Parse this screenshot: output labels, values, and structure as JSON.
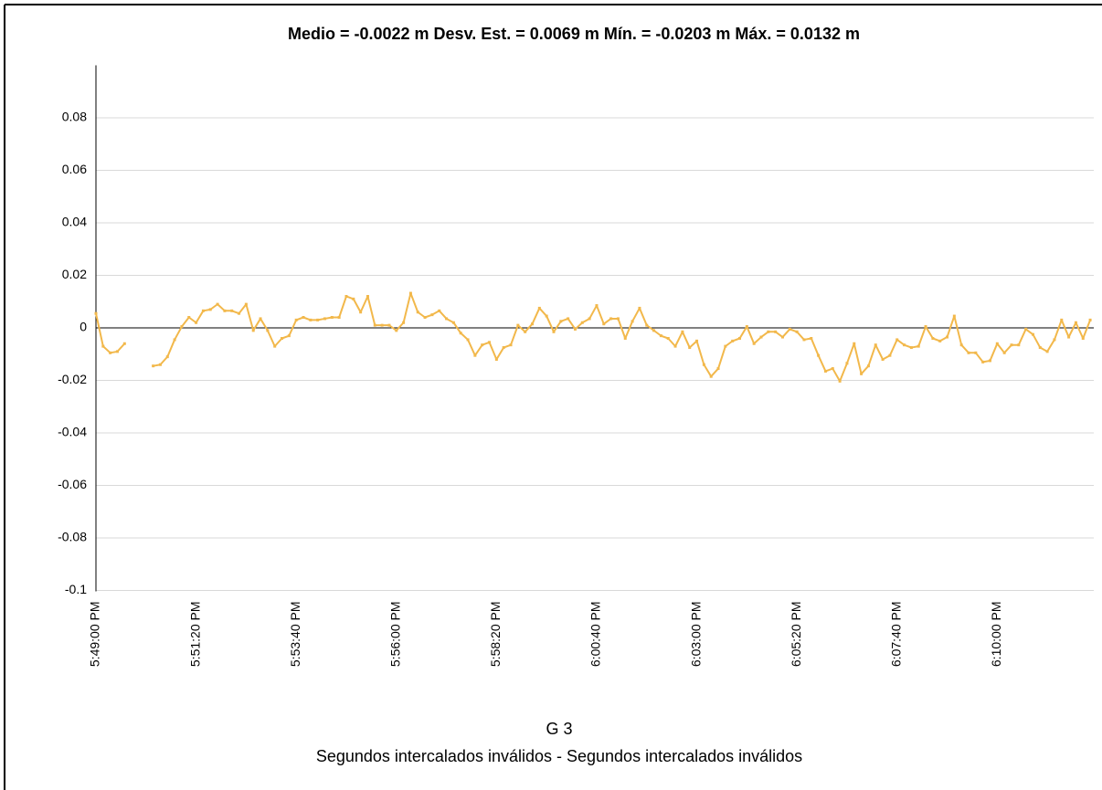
{
  "chart_data": {
    "type": "line",
    "title": "Medio = -0.0022 m Desv. Est. = 0.0069 m Mín. = -0.0203 m Máx. = 0.0132 m",
    "xlabel": "G 3",
    "caption": "Segundos intercalados inválidos - Segundos intercalados inválidos",
    "color": "#f2b84b",
    "grid": true,
    "x": [
      "5:49:00 PM",
      "5:49:10 PM",
      "5:49:20 PM",
      "5:49:30 PM",
      "5:49:40 PM",
      "5:49:50 PM",
      "5:50:00 PM",
      "5:50:10 PM",
      "5:50:20 PM",
      "5:50:30 PM",
      "5:50:40 PM",
      "5:50:50 PM",
      "5:51:00 PM",
      "5:51:10 PM",
      "5:51:20 PM",
      "5:51:30 PM",
      "5:51:40 PM",
      "5:51:50 PM",
      "5:52:00 PM",
      "5:52:10 PM",
      "5:52:20 PM",
      "5:52:30 PM",
      "5:52:40 PM",
      "5:52:50 PM",
      "5:53:00 PM",
      "5:53:10 PM",
      "5:53:20 PM",
      "5:53:30 PM",
      "5:53:40 PM",
      "5:53:50 PM",
      "5:54:00 PM",
      "5:54:10 PM",
      "5:54:20 PM",
      "5:54:30 PM",
      "5:54:40 PM",
      "5:54:50 PM",
      "5:55:00 PM",
      "5:55:10 PM",
      "5:55:20 PM",
      "5:55:30 PM",
      "5:55:40 PM",
      "5:55:50 PM",
      "5:56:00 PM",
      "5:56:10 PM",
      "5:56:20 PM",
      "5:56:30 PM",
      "5:56:40 PM",
      "5:56:50 PM",
      "5:57:00 PM",
      "5:57:10 PM",
      "5:57:20 PM",
      "5:57:30 PM",
      "5:57:40 PM",
      "5:57:50 PM",
      "5:58:00 PM",
      "5:58:10 PM",
      "5:58:20 PM",
      "5:58:30 PM",
      "5:58:40 PM",
      "5:58:50 PM",
      "5:59:00 PM",
      "5:59:10 PM",
      "5:59:20 PM",
      "5:59:30 PM",
      "5:59:40 PM",
      "5:59:50 PM",
      "6:00:00 PM",
      "6:00:10 PM",
      "6:00:20 PM",
      "6:00:30 PM",
      "6:00:40 PM",
      "6:00:50 PM",
      "6:01:00 PM",
      "6:01:10 PM",
      "6:01:20 PM",
      "6:01:30 PM",
      "6:01:40 PM",
      "6:01:50 PM",
      "6:02:00 PM",
      "6:02:10 PM",
      "6:02:20 PM",
      "6:02:30 PM",
      "6:02:40 PM",
      "6:02:50 PM",
      "6:03:00 PM",
      "6:03:10 PM",
      "6:03:20 PM",
      "6:03:30 PM",
      "6:03:40 PM",
      "6:03:50 PM",
      "6:04:00 PM",
      "6:04:10 PM",
      "6:04:20 PM",
      "6:04:30 PM",
      "6:04:40 PM",
      "6:04:50 PM",
      "6:05:00 PM",
      "6:05:10 PM",
      "6:05:20 PM",
      "6:05:30 PM",
      "6:05:40 PM",
      "6:05:50 PM",
      "6:06:00 PM",
      "6:06:10 PM",
      "6:06:20 PM",
      "6:06:30 PM",
      "6:06:40 PM",
      "6:06:50 PM",
      "6:07:00 PM",
      "6:07:10 PM",
      "6:07:20 PM",
      "6:07:30 PM",
      "6:07:40 PM",
      "6:07:50 PM",
      "6:08:00 PM",
      "6:08:10 PM",
      "6:08:20 PM",
      "6:08:30 PM",
      "6:08:40 PM",
      "6:08:50 PM",
      "6:09:00 PM",
      "6:09:10 PM",
      "6:09:20 PM",
      "6:09:30 PM",
      "6:09:40 PM",
      "6:09:50 PM",
      "6:10:00 PM",
      "6:10:10 PM",
      "6:10:20 PM",
      "6:10:30 PM",
      "6:10:40 PM",
      "6:10:50 PM",
      "6:11:00 PM",
      "6:11:10 PM",
      "6:11:20 PM",
      "6:11:30 PM",
      "6:11:40 PM",
      "6:11:50 PM",
      "6:12:00 PM",
      "6:12:10 PM"
    ],
    "values": [
      0.0055,
      -0.007,
      -0.0095,
      -0.009,
      -0.006,
      null,
      null,
      null,
      -0.0145,
      -0.014,
      -0.011,
      -0.0045,
      0.0005,
      0.004,
      0.002,
      0.0065,
      0.007,
      0.009,
      0.0065,
      0.0065,
      0.0055,
      0.009,
      -0.001,
      0.0035,
      -0.001,
      -0.007,
      -0.004,
      -0.003,
      0.003,
      0.004,
      0.003,
      0.003,
      0.0035,
      0.004,
      0.004,
      0.012,
      0.011,
      0.006,
      0.012,
      0.001,
      0.001,
      0.001,
      -0.001,
      0.002,
      0.0132,
      0.006,
      0.004,
      0.005,
      0.0065,
      0.0035,
      0.002,
      -0.002,
      -0.0045,
      -0.0105,
      -0.0065,
      -0.0055,
      -0.012,
      -0.0075,
      -0.0065,
      0.001,
      -0.0015,
      0.0015,
      0.0075,
      0.0045,
      -0.0015,
      0.0025,
      0.0035,
      -0.0005,
      0.002,
      0.0035,
      0.0085,
      0.0015,
      0.0035,
      0.0035,
      -0.004,
      0.0025,
      0.0075,
      0.001,
      -0.001,
      -0.003,
      -0.004,
      -0.007,
      -0.0015,
      -0.0075,
      -0.005,
      -0.014,
      -0.0185,
      -0.0155,
      -0.007,
      -0.005,
      -0.004,
      0.0005,
      -0.006,
      -0.0035,
      -0.0015,
      -0.0015,
      -0.0035,
      -0.0005,
      -0.0015,
      -0.0045,
      -0.004,
      -0.0105,
      -0.0165,
      -0.0155,
      -0.0203,
      -0.0135,
      -0.006,
      -0.0175,
      -0.0145,
      -0.0065,
      -0.012,
      -0.0105,
      -0.0045,
      -0.0065,
      -0.0075,
      -0.007,
      0.0005,
      -0.004,
      -0.005,
      -0.0035,
      0.0045,
      -0.0065,
      -0.0095,
      -0.0095,
      -0.013,
      -0.0125,
      -0.006,
      -0.0095,
      -0.0065,
      -0.0065,
      -0.0005,
      -0.0025,
      -0.0075,
      -0.009,
      -0.0045,
      0.003,
      -0.0035,
      0.002,
      -0.004,
      0.003
    ],
    "xlim": [
      "5:49:00 PM",
      "6:12:15 PM"
    ],
    "xticks": [
      "5:49:00 PM",
      "5:51:20 PM",
      "5:53:40 PM",
      "5:56:00 PM",
      "5:58:20 PM",
      "6:00:40 PM",
      "6:03:00 PM",
      "6:05:20 PM",
      "6:07:40 PM",
      "6:10:00 PM"
    ],
    "ylim": [
      -0.1,
      0.1
    ],
    "yticks": [
      -0.1,
      -0.08,
      -0.06,
      -0.04,
      -0.02,
      0,
      0.02,
      0.04,
      0.06,
      0.08
    ]
  }
}
